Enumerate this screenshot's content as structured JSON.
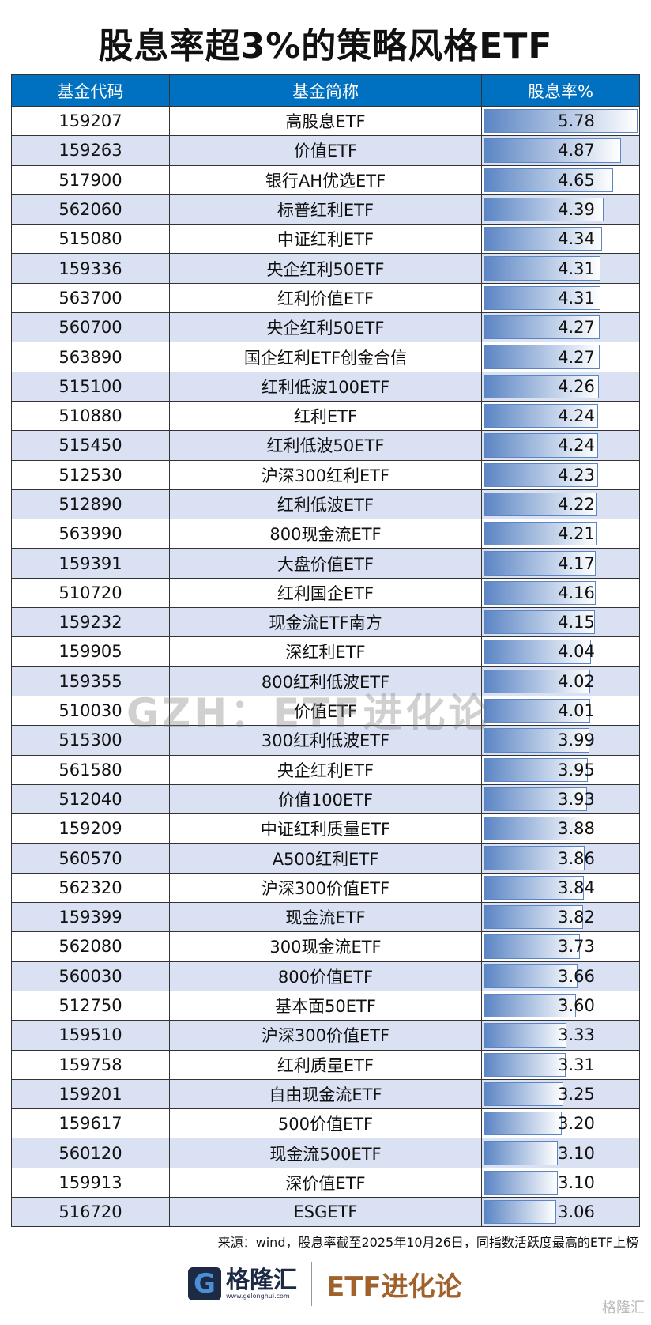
{
  "title": "股息率超3%的策略风格ETF",
  "headers": [
    "基金代码",
    "基金简称",
    "股息率%"
  ],
  "rows": [
    [
      "159207",
      "高股息ETF",
      "5.78"
    ],
    [
      "159263",
      "价值ETF",
      "4.87"
    ],
    [
      "517900",
      "银行AH优选ETF",
      "4.65"
    ],
    [
      "562060",
      "标普红利ETF",
      "4.39"
    ],
    [
      "515080",
      "中证红利ETF",
      "4.34"
    ],
    [
      "159336",
      "央企红利50ETF",
      "4.31"
    ],
    [
      "563700",
      "红利价值ETF",
      "4.31"
    ],
    [
      "560700",
      "央企红利50ETF",
      "4.27"
    ],
    [
      "563890",
      "国企红利ETF创金合信",
      "4.27"
    ],
    [
      "515100",
      "红利低波100ETF",
      "4.26"
    ],
    [
      "510880",
      "红利ETF",
      "4.24"
    ],
    [
      "515450",
      "红利低波50ETF",
      "4.24"
    ],
    [
      "512530",
      "沪深300红利ETF",
      "4.23"
    ],
    [
      "512890",
      "红利低波ETF",
      "4.22"
    ],
    [
      "563990",
      "800现金流ETF",
      "4.21"
    ],
    [
      "159391",
      "大盘价值ETF",
      "4.17"
    ],
    [
      "510720",
      "红利国企ETF",
      "4.16"
    ],
    [
      "159232",
      "现金流ETF南方",
      "4.15"
    ],
    [
      "159905",
      "深红利ETF",
      "4.04"
    ],
    [
      "159355",
      "800红利低波ETF",
      "4.02"
    ],
    [
      "510030",
      "价值ETF",
      "4.01"
    ],
    [
      "515300",
      "300红利低波ETF",
      "3.99"
    ],
    [
      "561580",
      "央企红利ETF",
      "3.95"
    ],
    [
      "512040",
      "价值100ETF",
      "3.93"
    ],
    [
      "159209",
      "中证红利质量ETF",
      "3.88"
    ],
    [
      "560570",
      "A500红利ETF",
      "3.86"
    ],
    [
      "562320",
      "沪深300价值ETF",
      "3.84"
    ],
    [
      "159399",
      "现金流ETF",
      "3.82"
    ],
    [
      "562080",
      "300现金流ETF",
      "3.73"
    ],
    [
      "560030",
      "800价值ETF",
      "3.66"
    ],
    [
      "512750",
      "基本面50ETF",
      "3.60"
    ],
    [
      "159510",
      "沪深300价值ETF",
      "3.33"
    ],
    [
      "159758",
      "红利质量ETF",
      "3.31"
    ],
    [
      "159201",
      "自由现金流ETF",
      "3.25"
    ],
    [
      "159617",
      "500价值ETF",
      "3.20"
    ],
    [
      "560120",
      "现金流500ETF",
      "3.10"
    ],
    [
      "159913",
      "深价值ETF",
      "3.10"
    ],
    [
      "516720",
      "ESGETF",
      "3.06"
    ]
  ],
  "watermark": "GZH：ETF进化论",
  "source": "来源：wind，股息率截至2025年10月26日，同指数活跃度最高的ETF上榜",
  "logo": {
    "brand": "格隆汇",
    "url": "www.gelonghui.com",
    "column": "ETF进化论",
    "corner": "格隆汇"
  },
  "colors": {
    "header": "#0070c0",
    "alt_row": "#d9e1f2",
    "bar": "#5b85c4",
    "column_text": "#a0622a"
  }
}
